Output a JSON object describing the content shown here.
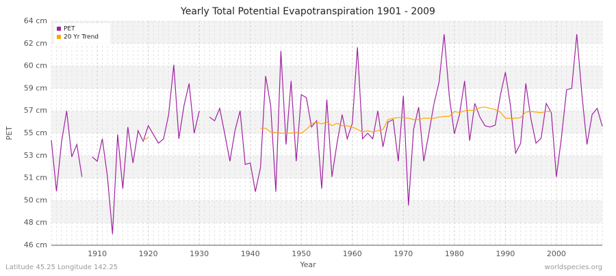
{
  "chart_data": {
    "type": "line",
    "title": "Yearly Total Potential Evapotranspiration 1901 - 2009",
    "xlabel": "Year",
    "ylabel": "PET",
    "footer_left": "Latitude 45.25 Longitude 142.25",
    "footer_right": "worldspecies.org",
    "legend": "top-left",
    "grid": true,
    "x": [
      1901,
      1902,
      1903,
      1904,
      1905,
      1906,
      1907,
      1908,
      1909,
      1910,
      1911,
      1912,
      1913,
      1914,
      1915,
      1916,
      1917,
      1918,
      1919,
      1920,
      1921,
      1922,
      1923,
      1924,
      1925,
      1926,
      1927,
      1928,
      1929,
      1930,
      1931,
      1932,
      1933,
      1934,
      1935,
      1936,
      1937,
      1938,
      1939,
      1940,
      1941,
      1942,
      1943,
      1944,
      1945,
      1946,
      1947,
      1948,
      1949,
      1950,
      1951,
      1952,
      1953,
      1954,
      1955,
      1956,
      1957,
      1958,
      1959,
      1960,
      1961,
      1962,
      1963,
      1964,
      1965,
      1966,
      1967,
      1968,
      1969,
      1970,
      1971,
      1972,
      1973,
      1974,
      1975,
      1976,
      1977,
      1978,
      1979,
      1980,
      1981,
      1982,
      1983,
      1984,
      1985,
      1986,
      1987,
      1988,
      1989,
      1990,
      1991,
      1992,
      1993,
      1994,
      1995,
      1996,
      1997,
      1998,
      1999,
      2000,
      2001,
      2002,
      2003,
      2004,
      2005,
      2006,
      2007,
      2008,
      2009
    ],
    "xlim": [
      1901,
      2009
    ],
    "xticks": [
      1910,
      1920,
      1930,
      1940,
      1950,
      1960,
      1970,
      1980,
      1990,
      2000
    ],
    "ylim": [
      46,
      64
    ],
    "yticks": [
      {
        "value": 46,
        "label": "46 cm"
      },
      {
        "value": 47.8,
        "label": "48 cm"
      },
      {
        "value": 49.6,
        "label": "50 cm"
      },
      {
        "value": 51.4,
        "label": "51 cm"
      },
      {
        "value": 53.2,
        "label": "53 cm"
      },
      {
        "value": 55,
        "label": "55 cm"
      },
      {
        "value": 56.8,
        "label": "57 cm"
      },
      {
        "value": 58.6,
        "label": "59 cm"
      },
      {
        "value": 60.4,
        "label": "60 cm"
      },
      {
        "value": 62.2,
        "label": "62 cm"
      },
      {
        "value": 64,
        "label": "64 cm"
      }
    ],
    "series": [
      {
        "name": "PET",
        "color": "#a020a0",
        "values": [
          54.45,
          50.33,
          54.3,
          56.8,
          53.1,
          54.1,
          51.5,
          null,
          53.1,
          52.75,
          54.55,
          51.5,
          46.9,
          54.9,
          50.55,
          55.5,
          52.6,
          55.2,
          54.35,
          55.6,
          54.9,
          54.2,
          54.55,
          56.5,
          60.5,
          54.55,
          57.2,
          59.0,
          55.0,
          56.8,
          null,
          56.3,
          56.0,
          57.0,
          54.95,
          52.75,
          55.2,
          56.8,
          52.5,
          52.6,
          50.3,
          52.25,
          59.6,
          57.2,
          50.3,
          61.6,
          54.1,
          59.2,
          52.75,
          58.1,
          57.85,
          55.5,
          56.0,
          50.55,
          57.7,
          51.5,
          54.2,
          56.5,
          54.55,
          55.8,
          61.9,
          54.55,
          55.0,
          54.55,
          56.8,
          53.9,
          55.9,
          56.1,
          52.75,
          58.0,
          49.2,
          55.3,
          57.1,
          52.75,
          55.0,
          57.35,
          59.1,
          62.95,
          58.0,
          54.95,
          56.5,
          59.2,
          54.4,
          57.4,
          56.3,
          55.6,
          55.5,
          55.65,
          58.0,
          59.9,
          57.2,
          53.4,
          54.2,
          59.0,
          56.2,
          54.2,
          54.6,
          57.4,
          56.65,
          51.5,
          54.7,
          58.5,
          58.6,
          62.95,
          58.1,
          54.1,
          56.5,
          57.0,
          55.55
        ]
      },
      {
        "name": "20 Yr Trend",
        "color": "#ffa500",
        "values": [
          null,
          null,
          null,
          null,
          null,
          null,
          null,
          null,
          null,
          null,
          null,
          null,
          null,
          null,
          null,
          null,
          null,
          null,
          54.45,
          54.65,
          null,
          null,
          null,
          null,
          null,
          null,
          null,
          null,
          null,
          null,
          null,
          null,
          null,
          null,
          null,
          null,
          null,
          null,
          null,
          null,
          null,
          55.4,
          55.4,
          55.1,
          55.05,
          55.0,
          55.0,
          55.0,
          55.05,
          55.0,
          55.3,
          55.75,
          55.9,
          55.75,
          55.9,
          55.6,
          55.8,
          55.6,
          55.6,
          55.5,
          55.3,
          55.1,
          55.2,
          55.1,
          55.2,
          55.3,
          56.1,
          56.2,
          56.25,
          56.25,
          56.2,
          56.1,
          56.1,
          56.2,
          56.2,
          56.2,
          56.3,
          56.35,
          56.35,
          56.75,
          56.65,
          56.8,
          56.85,
          56.85,
          57.05,
          57.1,
          57.0,
          56.9,
          56.7,
          56.2,
          56.2,
          56.2,
          56.25,
          56.7,
          56.75,
          56.7,
          56.65,
          56.75,
          56.75,
          null,
          null,
          null,
          null,
          null,
          null,
          null,
          null,
          null,
          null
        ]
      }
    ]
  }
}
